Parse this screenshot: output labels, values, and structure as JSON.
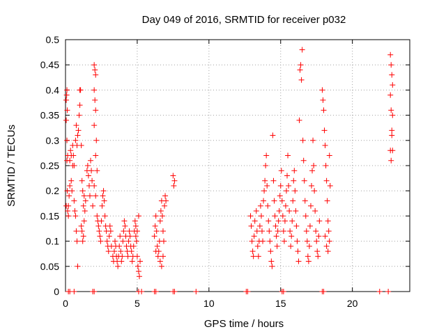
{
  "chart_data": {
    "type": "scatter",
    "title": "Day 049 of 2016, SRMTID for receiver p032",
    "xlabel": "GPS time / hours",
    "ylabel": "SRMTID / TECUs",
    "xlim": [
      0,
      24
    ],
    "ylim": [
      0,
      0.5
    ],
    "grid": true,
    "x_ticks": [
      0,
      5,
      10,
      15,
      20
    ],
    "y_ticks": [
      0,
      0.05,
      0.1,
      0.15,
      0.2,
      0.25,
      0.3,
      0.35,
      0.4,
      0.45,
      0.5
    ],
    "x_tick_labels": [
      "0",
      "5",
      "10",
      "15",
      "20"
    ],
    "y_tick_labels": [
      "0",
      "0.05",
      "0.1",
      "0.15",
      "0.2",
      "0.25",
      "0.3",
      "0.35",
      "0.4",
      "0.45",
      "0.5"
    ],
    "marker": "+",
    "color": "#ff0000",
    "series": [
      {
        "name": "SRMTID",
        "points": [
          [
            0.05,
            0.38
          ],
          [
            0.08,
            0.39
          ],
          [
            0.1,
            0.4
          ],
          [
            0.12,
            0.36
          ],
          [
            0.05,
            0.34
          ],
          [
            0.1,
            0.3
          ],
          [
            0.15,
            0.27
          ],
          [
            0.1,
            0.26
          ],
          [
            0.12,
            0.2
          ],
          [
            0.2,
            0.17
          ],
          [
            0.25,
            0.19
          ],
          [
            0.3,
            0.21
          ],
          [
            0.05,
            0.17
          ],
          [
            0.15,
            0.16
          ],
          [
            0.2,
            0.15
          ],
          [
            0.3,
            0.26
          ],
          [
            0.35,
            0.28
          ],
          [
            0.4,
            0.22
          ],
          [
            0.45,
            0.2
          ],
          [
            0.5,
            0.25
          ],
          [
            0.55,
            0.27
          ],
          [
            0.6,
            0.18
          ],
          [
            0.65,
            0.16
          ],
          [
            0.7,
            0.15
          ],
          [
            0.75,
            0.12
          ],
          [
            0.8,
            0.1
          ],
          [
            0.85,
            0.05
          ],
          [
            0.4,
            0.27
          ],
          [
            0.5,
            0.29
          ],
          [
            0.6,
            0.25
          ],
          [
            0.7,
            0.3
          ],
          [
            0.75,
            0.33
          ],
          [
            0.8,
            0.29
          ],
          [
            0.85,
            0.31
          ],
          [
            0.9,
            0.32
          ],
          [
            1.0,
            0.4
          ],
          [
            1.05,
            0.4
          ],
          [
            0.95,
            0.35
          ],
          [
            1.0,
            0.37
          ],
          [
            1.1,
            0.29
          ],
          [
            1.15,
            0.22
          ],
          [
            1.2,
            0.2
          ],
          [
            1.25,
            0.17
          ],
          [
            1.3,
            0.19
          ],
          [
            1.1,
            0.13
          ],
          [
            1.15,
            0.12
          ],
          [
            1.2,
            0.1
          ],
          [
            1.25,
            0.11
          ],
          [
            1.3,
            0.14
          ],
          [
            1.35,
            0.16
          ],
          [
            1.4,
            0.18
          ],
          [
            1.5,
            0.24
          ],
          [
            1.55,
            0.25
          ],
          [
            1.6,
            0.23
          ],
          [
            1.65,
            0.21
          ],
          [
            1.7,
            0.19
          ],
          [
            1.75,
            0.26
          ],
          [
            1.8,
            0.24
          ],
          [
            1.85,
            0.22
          ],
          [
            1.9,
            0.17
          ],
          [
            2.0,
            0.45
          ],
          [
            2.05,
            0.44
          ],
          [
            2.1,
            0.43
          ],
          [
            2.0,
            0.4
          ],
          [
            2.05,
            0.38
          ],
          [
            2.1,
            0.36
          ],
          [
            2.0,
            0.33
          ],
          [
            2.15,
            0.3
          ],
          [
            2.1,
            0.27
          ],
          [
            2.2,
            0.24
          ],
          [
            2.0,
            0.21
          ],
          [
            2.1,
            0.19
          ],
          [
            2.2,
            0.15
          ],
          [
            2.25,
            0.14
          ],
          [
            2.3,
            0.13
          ],
          [
            2.35,
            0.12
          ],
          [
            2.4,
            0.11
          ],
          [
            2.45,
            0.1
          ],
          [
            2.5,
            0.14
          ],
          [
            2.55,
            0.17
          ],
          [
            2.6,
            0.19
          ],
          [
            2.65,
            0.2
          ],
          [
            2.7,
            0.18
          ],
          [
            2.75,
            0.15
          ],
          [
            2.8,
            0.13
          ],
          [
            2.85,
            0.12
          ],
          [
            2.9,
            0.1
          ],
          [
            2.95,
            0.09
          ],
          [
            3.0,
            0.08
          ],
          [
            3.05,
            0.11
          ],
          [
            3.1,
            0.13
          ],
          [
            3.15,
            0.12
          ],
          [
            3.2,
            0.09
          ],
          [
            3.3,
            0.07
          ],
          [
            3.35,
            0.06
          ],
          [
            3.4,
            0.08
          ],
          [
            3.45,
            0.1
          ],
          [
            3.5,
            0.09
          ],
          [
            3.55,
            0.07
          ],
          [
            3.6,
            0.06
          ],
          [
            3.65,
            0.05
          ],
          [
            3.7,
            0.07
          ],
          [
            3.75,
            0.09
          ],
          [
            3.8,
            0.11
          ],
          [
            3.85,
            0.08
          ],
          [
            3.9,
            0.06
          ],
          [
            3.95,
            0.07
          ],
          [
            4.0,
            0.1
          ],
          [
            4.05,
            0.12
          ],
          [
            4.1,
            0.14
          ],
          [
            4.15,
            0.13
          ],
          [
            4.2,
            0.11
          ],
          [
            4.25,
            0.09
          ],
          [
            4.3,
            0.08
          ],
          [
            4.35,
            0.07
          ],
          [
            4.4,
            0.1
          ],
          [
            4.45,
            0.12
          ],
          [
            4.5,
            0.11
          ],
          [
            4.55,
            0.09
          ],
          [
            4.6,
            0.08
          ],
          [
            4.65,
            0.06
          ],
          [
            4.7,
            0.07
          ],
          [
            4.75,
            0.09
          ],
          [
            4.8,
            0.12
          ],
          [
            4.85,
            0.14
          ],
          [
            4.9,
            0.13
          ],
          [
            4.95,
            0.1
          ],
          [
            5.0,
            0.07
          ],
          [
            5.05,
            0.05
          ],
          [
            5.1,
            0.04
          ],
          [
            5.15,
            0.03
          ],
          [
            5.2,
            0.06
          ],
          [
            5.1,
            0.15
          ],
          [
            5.0,
            0.12
          ],
          [
            4.9,
            0.11
          ],
          [
            6.2,
            0.11
          ],
          [
            6.25,
            0.13
          ],
          [
            6.3,
            0.15
          ],
          [
            6.35,
            0.12
          ],
          [
            6.4,
            0.09
          ],
          [
            6.45,
            0.07
          ],
          [
            6.5,
            0.08
          ],
          [
            6.55,
            0.1
          ],
          [
            6.6,
            0.14
          ],
          [
            6.65,
            0.16
          ],
          [
            6.7,
            0.18
          ],
          [
            6.75,
            0.15
          ],
          [
            6.8,
            0.12
          ],
          [
            6.85,
            0.1
          ],
          [
            6.9,
            0.17
          ],
          [
            6.95,
            0.19
          ],
          [
            7.0,
            0.18
          ],
          [
            7.5,
            0.23
          ],
          [
            7.55,
            0.21
          ],
          [
            7.6,
            0.22
          ],
          [
            6.6,
            0.06
          ],
          [
            6.7,
            0.05
          ],
          [
            6.8,
            0.07
          ],
          [
            6.3,
            0.08
          ],
          [
            12.9,
            0.15
          ],
          [
            12.95,
            0.13
          ],
          [
            13.0,
            0.1
          ],
          [
            13.05,
            0.08
          ],
          [
            13.1,
            0.07
          ],
          [
            13.15,
            0.11
          ],
          [
            13.2,
            0.14
          ],
          [
            13.3,
            0.16
          ],
          [
            13.35,
            0.12
          ],
          [
            13.4,
            0.09
          ],
          [
            13.45,
            0.07
          ],
          [
            13.5,
            0.1
          ],
          [
            13.55,
            0.13
          ],
          [
            13.6,
            0.17
          ],
          [
            13.65,
            0.15
          ],
          [
            13.7,
            0.12
          ],
          [
            13.75,
            0.1
          ],
          [
            13.8,
            0.18
          ],
          [
            13.85,
            0.2
          ],
          [
            13.9,
            0.22
          ],
          [
            13.95,
            0.25
          ],
          [
            14.0,
            0.27
          ],
          [
            14.05,
            0.21
          ],
          [
            14.1,
            0.17
          ],
          [
            14.15,
            0.14
          ],
          [
            14.2,
            0.12
          ],
          [
            14.25,
            0.1
          ],
          [
            14.3,
            0.08
          ],
          [
            14.35,
            0.06
          ],
          [
            14.4,
            0.05
          ],
          [
            14.45,
            0.31
          ],
          [
            14.5,
            0.22
          ],
          [
            14.55,
            0.18
          ],
          [
            14.6,
            0.15
          ],
          [
            14.65,
            0.13
          ],
          [
            14.7,
            0.11
          ],
          [
            14.75,
            0.09
          ],
          [
            14.8,
            0.12
          ],
          [
            14.85,
            0.14
          ],
          [
            14.9,
            0.16
          ],
          [
            14.95,
            0.19
          ],
          [
            15.0,
            0.21
          ],
          [
            15.05,
            0.24
          ],
          [
            15.1,
            0.18
          ],
          [
            15.15,
            0.15
          ],
          [
            15.2,
            0.12
          ],
          [
            15.25,
            0.1
          ],
          [
            15.3,
            0.14
          ],
          [
            15.35,
            0.17
          ],
          [
            15.4,
            0.2
          ],
          [
            15.45,
            0.23
          ],
          [
            15.5,
            0.27
          ],
          [
            15.55,
            0.21
          ],
          [
            15.6,
            0.16
          ],
          [
            15.65,
            0.12
          ],
          [
            15.7,
            0.09
          ],
          [
            15.75,
            0.11
          ],
          [
            15.8,
            0.14
          ],
          [
            15.85,
            0.18
          ],
          [
            15.9,
            0.22
          ],
          [
            15.95,
            0.24
          ],
          [
            16.0,
            0.2
          ],
          [
            16.05,
            0.16
          ],
          [
            16.1,
            0.13
          ],
          [
            16.15,
            0.1
          ],
          [
            16.2,
            0.08
          ],
          [
            16.25,
            0.06
          ],
          [
            16.3,
            0.34
          ],
          [
            16.35,
            0.44
          ],
          [
            16.4,
            0.45
          ],
          [
            16.45,
            0.42
          ],
          [
            16.5,
            0.48
          ],
          [
            16.55,
            0.3
          ],
          [
            16.6,
            0.26
          ],
          [
            16.65,
            0.22
          ],
          [
            16.7,
            0.18
          ],
          [
            16.75,
            0.15
          ],
          [
            16.8,
            0.12
          ],
          [
            16.85,
            0.1
          ],
          [
            16.9,
            0.07
          ],
          [
            16.95,
            0.06
          ],
          [
            17.0,
            0.09
          ],
          [
            17.05,
            0.13
          ],
          [
            17.1,
            0.17
          ],
          [
            17.15,
            0.21
          ],
          [
            17.2,
            0.24
          ],
          [
            17.25,
            0.3
          ],
          [
            17.3,
            0.25
          ],
          [
            17.35,
            0.2
          ],
          [
            17.4,
            0.16
          ],
          [
            17.45,
            0.12
          ],
          [
            17.5,
            0.1
          ],
          [
            17.55,
            0.08
          ],
          [
            17.6,
            0.07
          ],
          [
            17.65,
            0.11
          ],
          [
            17.7,
            0.14
          ],
          [
            17.9,
            0.4
          ],
          [
            17.95,
            0.38
          ],
          [
            18.0,
            0.36
          ],
          [
            18.05,
            0.32
          ],
          [
            18.1,
            0.29
          ],
          [
            18.15,
            0.25
          ],
          [
            18.2,
            0.22
          ],
          [
            18.25,
            0.18
          ],
          [
            18.3,
            0.14
          ],
          [
            18.35,
            0.12
          ],
          [
            18.4,
            0.1
          ],
          [
            18.1,
            0.11
          ],
          [
            18.2,
            0.09
          ],
          [
            18.3,
            0.08
          ],
          [
            18.4,
            0.27
          ],
          [
            18.45,
            0.21
          ],
          [
            22.65,
            0.47
          ],
          [
            22.7,
            0.45
          ],
          [
            22.75,
            0.43
          ],
          [
            22.8,
            0.41
          ],
          [
            22.65,
            0.39
          ],
          [
            22.7,
            0.36
          ],
          [
            22.75,
            0.32
          ],
          [
            22.8,
            0.28
          ],
          [
            22.7,
            0.26
          ],
          [
            22.75,
            0.31
          ],
          [
            22.8,
            0.35
          ],
          [
            22.65,
            0.28
          ],
          [
            0.2,
            0
          ],
          [
            0.3,
            0
          ],
          [
            0.6,
            0
          ],
          [
            1.9,
            0
          ],
          [
            2.0,
            0
          ],
          [
            5.1,
            0
          ],
          [
            5.3,
            0
          ],
          [
            6.2,
            0
          ],
          [
            6.3,
            0
          ],
          [
            7.5,
            0
          ],
          [
            7.6,
            0
          ],
          [
            9.1,
            0
          ],
          [
            12.6,
            0
          ],
          [
            12.7,
            0
          ],
          [
            15.1,
            0
          ],
          [
            15.2,
            0
          ],
          [
            17.9,
            0
          ],
          [
            18.0,
            0
          ],
          [
            21.9,
            0
          ],
          [
            22.5,
            0
          ]
        ]
      }
    ]
  }
}
